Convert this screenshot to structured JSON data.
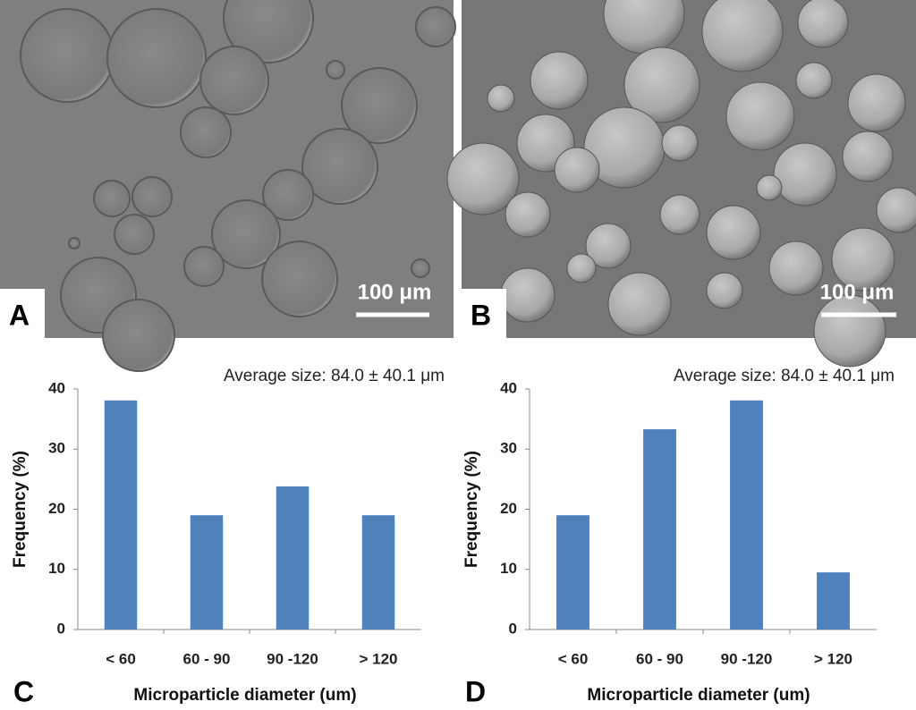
{
  "images": [
    {
      "panel_label": "A",
      "scale_bar": "100 μm"
    },
    {
      "panel_label": "B",
      "scale_bar": "100 μm"
    }
  ],
  "chart_data": [
    {
      "type": "bar",
      "panel_label": "C",
      "annotation": "Average size: 84.0 ± 40.1 μm",
      "x_label": "Microparticle diameter (um)",
      "y_label": "Frequency (%)",
      "categories": [
        "< 60",
        "60 - 90",
        "90 -120",
        "> 120"
      ],
      "values": [
        38.1,
        19.0,
        23.8,
        19.0
      ],
      "color": "#4f81bd",
      "ylim": [
        0,
        40
      ],
      "yticks": [
        0,
        10,
        20,
        30,
        40
      ],
      "grid": false
    },
    {
      "type": "bar",
      "panel_label": "D",
      "annotation": "Average size: 84.0 ± 40.1 μm",
      "x_label": "Microparticle diameter (um)",
      "y_label": "Frequency (%)",
      "categories": [
        "< 60",
        "60 - 90",
        "90 -120",
        "> 120"
      ],
      "values": [
        19.0,
        33.3,
        38.1,
        9.5
      ],
      "color": "#4f81bd",
      "ylim": [
        0,
        40
      ],
      "yticks": [
        0,
        10,
        20,
        30,
        40
      ],
      "grid": false
    }
  ]
}
